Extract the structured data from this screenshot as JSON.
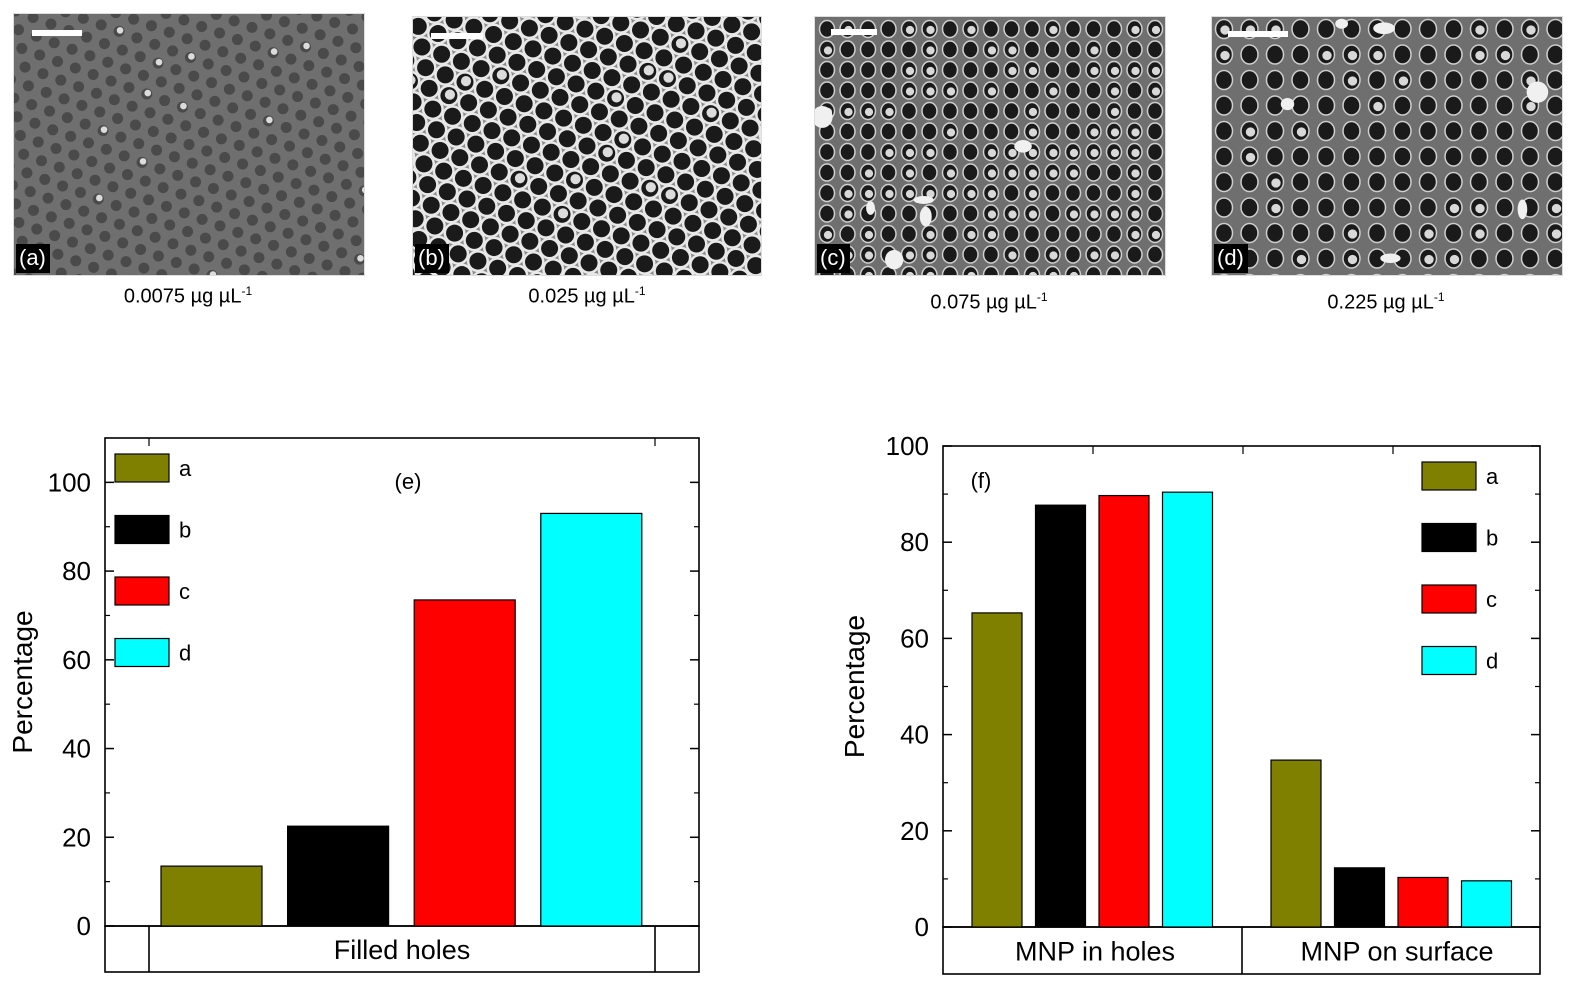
{
  "panels": [
    {
      "label": "(a)",
      "caption_main": "0.0075 µg µL",
      "caption_sup": "-1",
      "pattern": "hex-small"
    },
    {
      "label": "(b)",
      "caption_main": "0.025 µg µL",
      "caption_sup": "-1",
      "pattern": "hex-large"
    },
    {
      "label": "(c)",
      "caption_main": "0.075 µg µL",
      "caption_sup": "-1",
      "pattern": "square-dense"
    },
    {
      "label": "(d)",
      "caption_main": "0.225 µg µL",
      "caption_sup": "-1",
      "pattern": "square-sparse"
    }
  ],
  "colors": {
    "a": "#808000",
    "b": "#000000",
    "c": "#ff0000",
    "d": "#00ffff",
    "sem_bg": "#6f6f6f",
    "sem_hole": "#1a1a1a",
    "sem_rim": "#9a9a9a"
  },
  "chart_data": [
    {
      "type": "bar",
      "panel": "(e)",
      "ylabel": "Percentage",
      "ylim": [
        0,
        110
      ],
      "yticks": [
        "0",
        "20",
        "40",
        "60",
        "80",
        "100"
      ],
      "categories": [
        "Filled holes"
      ],
      "series": [
        {
          "name": "a",
          "values": [
            13.5
          ]
        },
        {
          "name": "b",
          "values": [
            22.5
          ]
        },
        {
          "name": "c",
          "values": [
            73.5
          ]
        },
        {
          "name": "d",
          "values": [
            93
          ]
        }
      ],
      "legend": [
        "a",
        "b",
        "c",
        "d"
      ],
      "legend_position": "top-left"
    },
    {
      "type": "bar",
      "panel": "(f)",
      "ylabel": "Percentage",
      "ylim": [
        0,
        100
      ],
      "yticks": [
        "0",
        "20",
        "40",
        "60",
        "80",
        "100"
      ],
      "categories": [
        "MNP in holes",
        "MNP on surface"
      ],
      "series": [
        {
          "name": "a",
          "values": [
            65.3,
            34.7
          ]
        },
        {
          "name": "b",
          "values": [
            87.7,
            12.3
          ]
        },
        {
          "name": "c",
          "values": [
            89.7,
            10.3
          ]
        },
        {
          "name": "d",
          "values": [
            90.4,
            9.6
          ]
        }
      ],
      "legend": [
        "a",
        "b",
        "c",
        "d"
      ],
      "legend_position": "top-right"
    }
  ]
}
